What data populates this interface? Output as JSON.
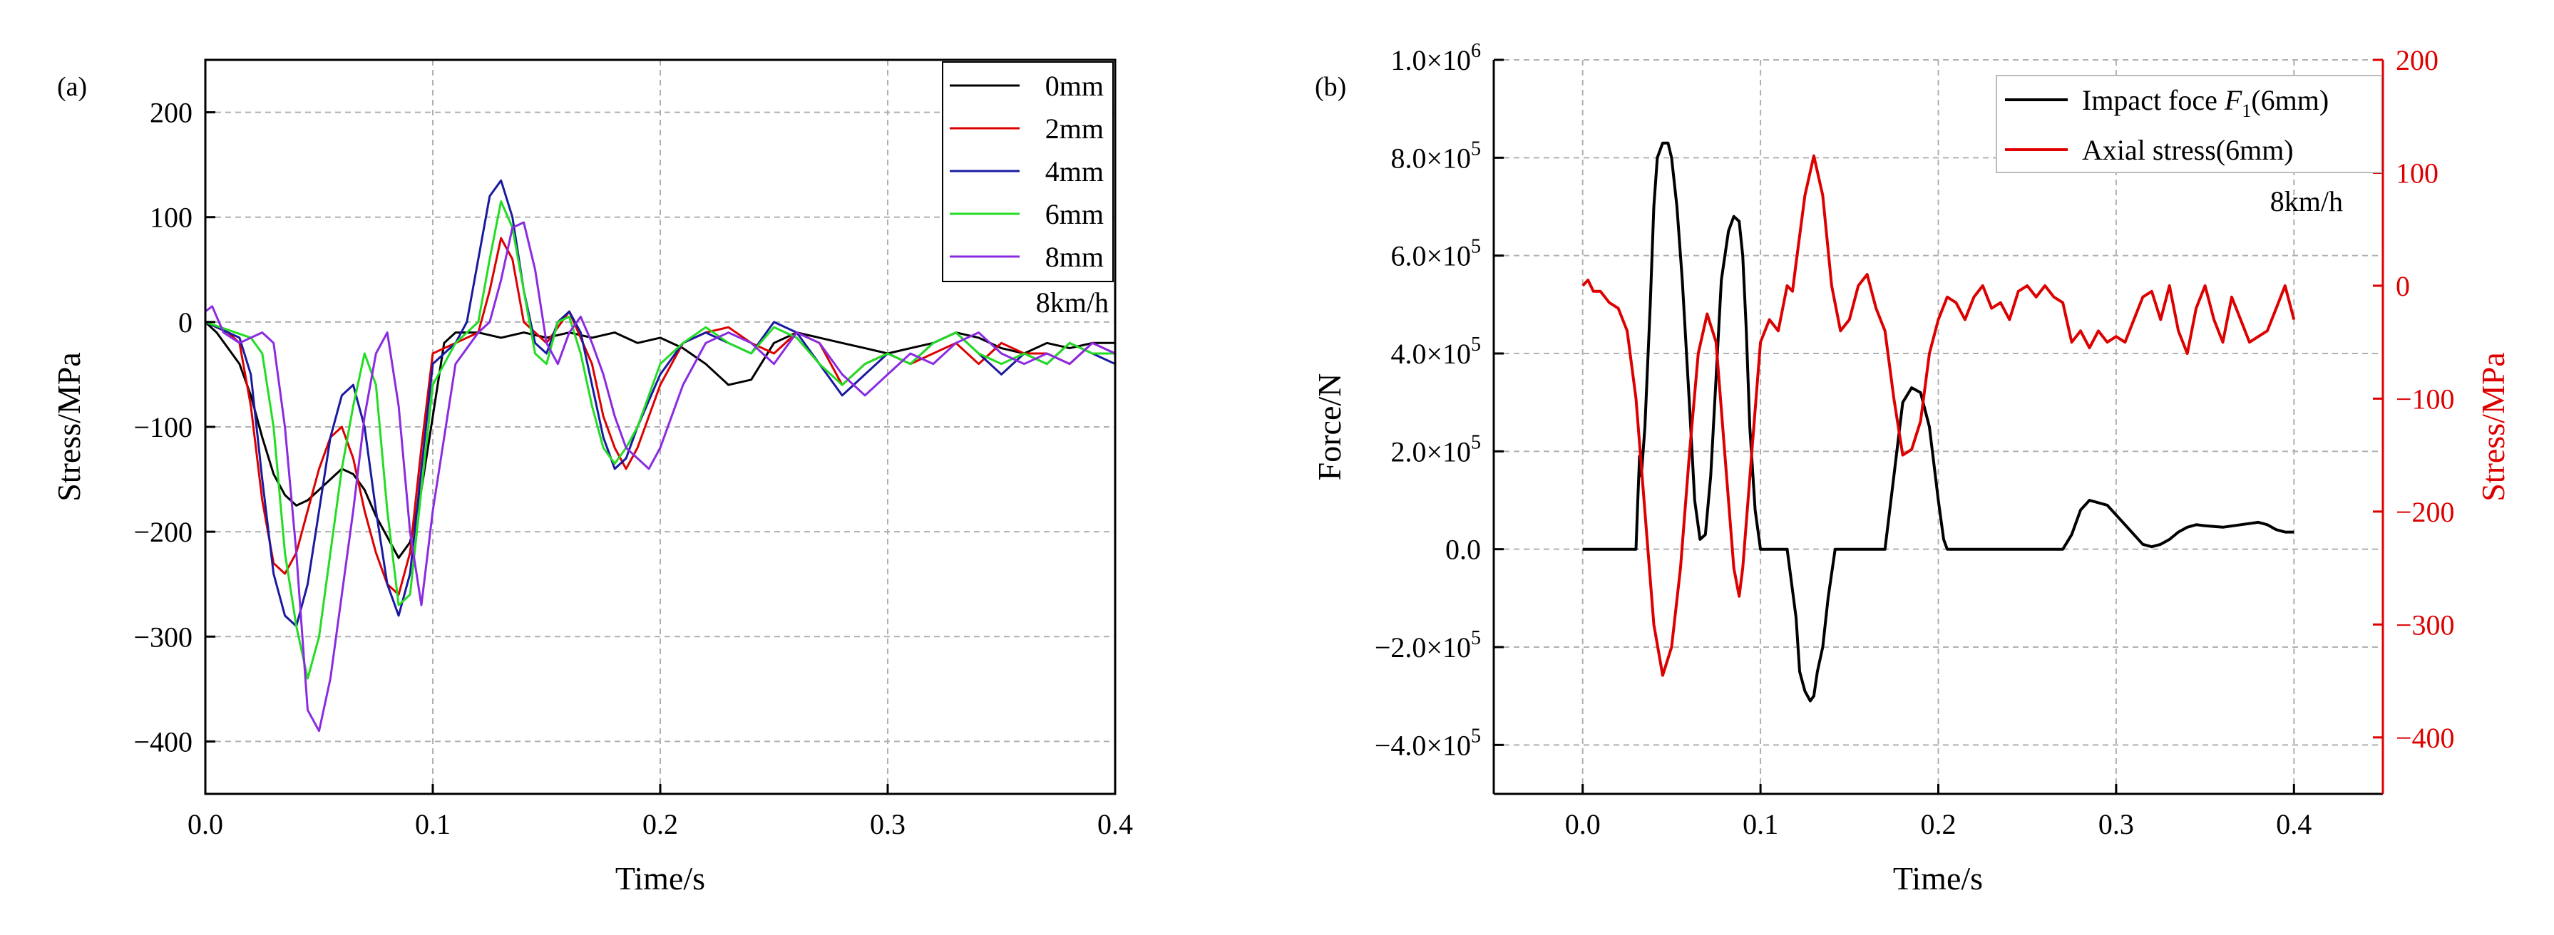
{
  "colors": {
    "axis": "#000000",
    "grid": "#b0b0b0",
    "right_axis": "#dd0000",
    "s0mm": "#000000",
    "s2mm": "#dd0000",
    "s4mm": "#1a1aa0",
    "s6mm": "#22dd22",
    "s8mm": "#8a2be2"
  },
  "chart_data": [
    {
      "type": "line",
      "panel_label": "(a)",
      "title": "",
      "xlabel": "Time/s",
      "ylabel": "Stress/MPa",
      "xlim": [
        0.0,
        0.4
      ],
      "ylim": [
        -450,
        250
      ],
      "xticks": [
        0.0,
        0.1,
        0.2,
        0.3,
        0.4
      ],
      "xtick_labels": [
        "0.0",
        "0.1",
        "0.2",
        "0.3",
        "0.4"
      ],
      "yticks": [
        200,
        100,
        0,
        -100,
        -200,
        -300,
        -400
      ],
      "ytick_labels": [
        "200",
        "100",
        "0",
        "−100",
        "−200",
        "−300",
        "−400"
      ],
      "grid": true,
      "legend_position": "top-right",
      "annotation": "8km/h",
      "series": [
        {
          "name": "0mm",
          "color_key": "s0mm",
          "x": [
            0.0,
            0.005,
            0.01,
            0.015,
            0.02,
            0.025,
            0.03,
            0.035,
            0.04,
            0.045,
            0.05,
            0.055,
            0.06,
            0.065,
            0.07,
            0.075,
            0.08,
            0.085,
            0.09,
            0.095,
            0.1,
            0.105,
            0.11,
            0.12,
            0.13,
            0.14,
            0.15,
            0.16,
            0.17,
            0.18,
            0.19,
            0.2,
            0.21,
            0.22,
            0.23,
            0.24,
            0.25,
            0.26,
            0.27,
            0.28,
            0.29,
            0.3,
            0.31,
            0.32,
            0.33,
            0.34,
            0.35,
            0.36,
            0.37,
            0.38,
            0.39,
            0.4
          ],
          "y": [
            0,
            -10,
            -25,
            -40,
            -70,
            -110,
            -145,
            -165,
            -175,
            -170,
            -160,
            -150,
            -140,
            -145,
            -160,
            -185,
            -205,
            -225,
            -210,
            -160,
            -90,
            -20,
            -10,
            -10,
            -15,
            -10,
            -15,
            -10,
            -15,
            -10,
            -20,
            -15,
            -25,
            -40,
            -60,
            -55,
            -20,
            -10,
            -15,
            -20,
            -25,
            -30,
            -25,
            -20,
            -10,
            -15,
            -25,
            -30,
            -20,
            -25,
            -20,
            -20
          ]
        },
        {
          "name": "2mm",
          "color_key": "s2mm",
          "x": [
            0.0,
            0.01,
            0.015,
            0.02,
            0.025,
            0.03,
            0.035,
            0.04,
            0.045,
            0.05,
            0.055,
            0.06,
            0.065,
            0.07,
            0.075,
            0.08,
            0.085,
            0.09,
            0.095,
            0.1,
            0.11,
            0.12,
            0.125,
            0.13,
            0.135,
            0.14,
            0.15,
            0.16,
            0.17,
            0.175,
            0.18,
            0.185,
            0.19,
            0.2,
            0.21,
            0.22,
            0.23,
            0.24,
            0.25,
            0.26,
            0.27,
            0.28,
            0.29,
            0.3,
            0.31,
            0.32,
            0.33,
            0.34,
            0.35,
            0.36,
            0.37,
            0.38,
            0.39,
            0.4
          ],
          "y": [
            0,
            -10,
            -20,
            -80,
            -170,
            -230,
            -240,
            -220,
            -180,
            -140,
            -110,
            -100,
            -130,
            -180,
            -220,
            -250,
            -260,
            -220,
            -120,
            -30,
            -20,
            -10,
            30,
            80,
            60,
            0,
            -20,
            10,
            -40,
            -90,
            -120,
            -140,
            -120,
            -60,
            -20,
            -10,
            -5,
            -20,
            -30,
            -10,
            -20,
            -60,
            -40,
            -30,
            -40,
            -30,
            -20,
            -40,
            -20,
            -30,
            -30,
            -40,
            -20,
            -30
          ]
        },
        {
          "name": "4mm",
          "color_key": "s4mm",
          "x": [
            0.0,
            0.015,
            0.02,
            0.025,
            0.03,
            0.035,
            0.04,
            0.045,
            0.05,
            0.055,
            0.06,
            0.065,
            0.07,
            0.075,
            0.08,
            0.085,
            0.09,
            0.095,
            0.1,
            0.11,
            0.115,
            0.12,
            0.125,
            0.13,
            0.135,
            0.14,
            0.145,
            0.15,
            0.155,
            0.16,
            0.165,
            0.17,
            0.175,
            0.18,
            0.185,
            0.19,
            0.2,
            0.21,
            0.22,
            0.23,
            0.24,
            0.25,
            0.26,
            0.27,
            0.28,
            0.29,
            0.3,
            0.31,
            0.32,
            0.33,
            0.34,
            0.35,
            0.36,
            0.37,
            0.38,
            0.39,
            0.4
          ],
          "y": [
            0,
            -15,
            -50,
            -150,
            -240,
            -280,
            -290,
            -250,
            -180,
            -110,
            -70,
            -60,
            -100,
            -180,
            -250,
            -280,
            -240,
            -140,
            -40,
            -20,
            0,
            60,
            120,
            135,
            100,
            30,
            -20,
            -30,
            0,
            10,
            -10,
            -60,
            -110,
            -140,
            -130,
            -100,
            -50,
            -20,
            -10,
            -20,
            -30,
            0,
            -10,
            -40,
            -70,
            -50,
            -30,
            -40,
            -20,
            -10,
            -30,
            -50,
            -30,
            -40,
            -20,
            -30,
            -40
          ]
        },
        {
          "name": "6mm",
          "color_key": "s6mm",
          "x": [
            0.0,
            0.02,
            0.025,
            0.03,
            0.035,
            0.04,
            0.045,
            0.05,
            0.055,
            0.06,
            0.065,
            0.07,
            0.075,
            0.08,
            0.085,
            0.09,
            0.095,
            0.1,
            0.11,
            0.12,
            0.125,
            0.13,
            0.135,
            0.14,
            0.145,
            0.15,
            0.155,
            0.16,
            0.165,
            0.17,
            0.175,
            0.18,
            0.185,
            0.19,
            0.2,
            0.21,
            0.22,
            0.23,
            0.24,
            0.25,
            0.26,
            0.27,
            0.28,
            0.29,
            0.3,
            0.31,
            0.32,
            0.33,
            0.34,
            0.35,
            0.36,
            0.37,
            0.38,
            0.39,
            0.4
          ],
          "y": [
            0,
            -15,
            -30,
            -100,
            -220,
            -290,
            -340,
            -300,
            -220,
            -140,
            -80,
            -30,
            -60,
            -180,
            -270,
            -260,
            -160,
            -60,
            -20,
            0,
            60,
            115,
            90,
            30,
            -30,
            -40,
            0,
            5,
            -30,
            -80,
            -120,
            -135,
            -120,
            -100,
            -40,
            -20,
            -5,
            -20,
            -30,
            -5,
            -15,
            -40,
            -60,
            -40,
            -30,
            -40,
            -20,
            -10,
            -30,
            -40,
            -30,
            -40,
            -20,
            -30,
            -30
          ]
        },
        {
          "name": "8mm",
          "color_key": "s8mm",
          "x": [
            0.0,
            0.003,
            0.008,
            0.015,
            0.02,
            0.025,
            0.03,
            0.035,
            0.04,
            0.045,
            0.05,
            0.055,
            0.06,
            0.065,
            0.07,
            0.075,
            0.08,
            0.085,
            0.09,
            0.095,
            0.1,
            0.11,
            0.12,
            0.125,
            0.13,
            0.135,
            0.14,
            0.145,
            0.15,
            0.155,
            0.16,
            0.165,
            0.17,
            0.175,
            0.18,
            0.185,
            0.19,
            0.195,
            0.2,
            0.21,
            0.22,
            0.23,
            0.24,
            0.25,
            0.26,
            0.27,
            0.28,
            0.29,
            0.3,
            0.31,
            0.32,
            0.33,
            0.34,
            0.35,
            0.36,
            0.37,
            0.38,
            0.39,
            0.4
          ],
          "y": [
            10,
            15,
            -10,
            -20,
            -15,
            -10,
            -20,
            -100,
            -220,
            -370,
            -390,
            -340,
            -260,
            -180,
            -90,
            -30,
            -10,
            -80,
            -200,
            -270,
            -180,
            -40,
            -10,
            0,
            40,
            90,
            95,
            50,
            -20,
            -40,
            -10,
            5,
            -20,
            -50,
            -90,
            -120,
            -130,
            -140,
            -120,
            -60,
            -20,
            -10,
            -20,
            -40,
            -10,
            -20,
            -50,
            -70,
            -50,
            -30,
            -40,
            -20,
            -10,
            -30,
            -40,
            -30,
            -40,
            -20,
            -30
          ]
        }
      ]
    },
    {
      "type": "line",
      "panel_label": "(b)",
      "title": "",
      "xlabel": "Time/s",
      "ylabel_left": "Force/N",
      "ylabel_right": "Stress/MPa",
      "xlim": [
        -0.05,
        0.45
      ],
      "ylim_left": [
        -500000,
        1000000
      ],
      "ylim_right": [
        -450,
        200
      ],
      "xticks": [
        0.0,
        0.1,
        0.2,
        0.3,
        0.4
      ],
      "xtick_labels": [
        "0.0",
        "0.1",
        "0.2",
        "0.3",
        "0.4"
      ],
      "yticks_left": [
        1000000,
        800000,
        600000,
        400000,
        200000,
        0,
        -200000,
        -400000
      ],
      "ytick_labels_left": [
        {
          "mantissa": "1.0×10",
          "exp": "6"
        },
        {
          "mantissa": "8.0×10",
          "exp": "5"
        },
        {
          "mantissa": "6.0×10",
          "exp": "5"
        },
        {
          "mantissa": "4.0×10",
          "exp": "5"
        },
        {
          "mantissa": "2.0×10",
          "exp": "5"
        },
        {
          "mantissa": "0.0",
          "exp": ""
        },
        {
          "mantissa": "−2.0×10",
          "exp": "5"
        },
        {
          "mantissa": "−4.0×10",
          "exp": "5"
        }
      ],
      "yticks_right": [
        200,
        100,
        0,
        -100,
        -200,
        -300,
        -400
      ],
      "ytick_labels_right": [
        "200",
        "100",
        "0",
        "−100",
        "−200",
        "−300",
        "−400"
      ],
      "grid": true,
      "legend_position": "top-right",
      "annotation": "8km/h",
      "series": [
        {
          "name": "Impact foce F1(6mm)",
          "legend_text": "Impact foce ",
          "legend_var": "F",
          "legend_sub": "1",
          "legend_tail": "(6mm)",
          "axis": "left",
          "color_key": "s0mm",
          "x": [
            0.0,
            0.03,
            0.031,
            0.032,
            0.033,
            0.035,
            0.038,
            0.04,
            0.042,
            0.045,
            0.048,
            0.05,
            0.053,
            0.056,
            0.06,
            0.063,
            0.066,
            0.069,
            0.072,
            0.075,
            0.078,
            0.082,
            0.085,
            0.088,
            0.09,
            0.092,
            0.094,
            0.097,
            0.1,
            0.105,
            0.11,
            0.115,
            0.12,
            0.122,
            0.125,
            0.128,
            0.13,
            0.132,
            0.135,
            0.138,
            0.142,
            0.145,
            0.15,
            0.16,
            0.17,
            0.175,
            0.18,
            0.185,
            0.19,
            0.195,
            0.2,
            0.203,
            0.205,
            0.21,
            0.22,
            0.23,
            0.24,
            0.25,
            0.26,
            0.27,
            0.275,
            0.28,
            0.285,
            0.29,
            0.295,
            0.3,
            0.305,
            0.31,
            0.315,
            0.32,
            0.325,
            0.33,
            0.335,
            0.34,
            0.345,
            0.35,
            0.36,
            0.37,
            0.38,
            0.385,
            0.39,
            0.395,
            0.4
          ],
          "y": [
            0,
            0,
            100000,
            190000,
            150000,
            250000,
            500000,
            700000,
            800000,
            830000,
            830000,
            800000,
            700000,
            550000,
            300000,
            100000,
            20000,
            30000,
            150000,
            350000,
            550000,
            650000,
            680000,
            670000,
            600000,
            450000,
            250000,
            80000,
            0,
            0,
            0,
            0,
            -140000,
            -250000,
            -290000,
            -310000,
            -300000,
            -250000,
            -200000,
            -100000,
            0,
            0,
            0,
            0,
            0,
            150000,
            300000,
            330000,
            320000,
            250000,
            100000,
            20000,
            0,
            0,
            0,
            0,
            0,
            0,
            0,
            0,
            30000,
            80000,
            100000,
            95000,
            90000,
            70000,
            50000,
            30000,
            10000,
            5000,
            10000,
            20000,
            35000,
            45000,
            50000,
            48000,
            45000,
            50000,
            55000,
            50000,
            40000,
            35000,
            35000
          ]
        },
        {
          "name": "Axial stress(6mm)",
          "legend_text": "Axial stress(6mm)",
          "axis": "right",
          "color_key": "s2mm",
          "x": [
            0.0,
            0.003,
            0.006,
            0.01,
            0.015,
            0.02,
            0.025,
            0.03,
            0.035,
            0.04,
            0.045,
            0.05,
            0.055,
            0.06,
            0.065,
            0.07,
            0.075,
            0.08,
            0.085,
            0.088,
            0.09,
            0.095,
            0.1,
            0.105,
            0.11,
            0.115,
            0.118,
            0.12,
            0.125,
            0.13,
            0.135,
            0.14,
            0.145,
            0.15,
            0.155,
            0.16,
            0.165,
            0.17,
            0.175,
            0.18,
            0.185,
            0.19,
            0.195,
            0.2,
            0.205,
            0.21,
            0.215,
            0.22,
            0.225,
            0.23,
            0.235,
            0.24,
            0.245,
            0.25,
            0.255,
            0.26,
            0.265,
            0.27,
            0.275,
            0.28,
            0.285,
            0.29,
            0.295,
            0.3,
            0.305,
            0.31,
            0.315,
            0.32,
            0.325,
            0.33,
            0.335,
            0.34,
            0.345,
            0.35,
            0.355,
            0.36,
            0.365,
            0.37,
            0.375,
            0.38,
            0.385,
            0.39,
            0.395,
            0.4
          ],
          "y": [
            0,
            5,
            -5,
            -5,
            -15,
            -20,
            -40,
            -100,
            -200,
            -300,
            -345,
            -320,
            -250,
            -150,
            -60,
            -25,
            -50,
            -150,
            -250,
            -275,
            -250,
            -150,
            -50,
            -30,
            -40,
            0,
            -5,
            20,
            80,
            115,
            80,
            0,
            -40,
            -30,
            0,
            10,
            -20,
            -40,
            -100,
            -150,
            -145,
            -120,
            -60,
            -30,
            -10,
            -15,
            -30,
            -10,
            0,
            -20,
            -15,
            -30,
            -5,
            0,
            -10,
            0,
            -10,
            -15,
            -50,
            -40,
            -55,
            -40,
            -50,
            -45,
            -50,
            -30,
            -10,
            -5,
            -30,
            0,
            -40,
            -60,
            -20,
            0,
            -30,
            -50,
            -10,
            -30,
            -50,
            -45,
            -40,
            -20,
            0,
            -30
          ]
        }
      ]
    }
  ]
}
